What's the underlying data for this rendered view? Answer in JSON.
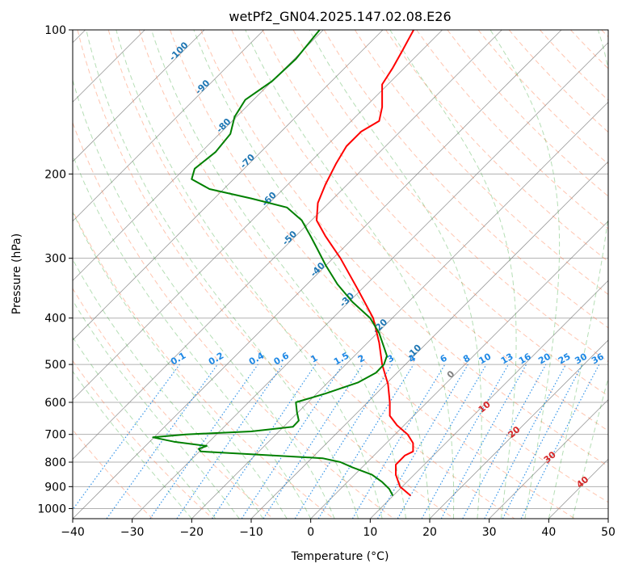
{
  "chart_data": {
    "type": "skew-t log-p",
    "title": "wetPf2_GN04.2025.147.02.08.E26",
    "xlabel": "Temperature (°C)",
    "ylabel": "Pressure (hPa)",
    "xlim": [
      -40,
      50
    ],
    "ylim_hpa": [
      1050,
      100
    ],
    "y_scale": "log",
    "grid": true,
    "x_ticks": [
      -40,
      -30,
      -20,
      -10,
      0,
      10,
      20,
      30,
      40,
      50
    ],
    "y_ticks": [
      100,
      200,
      300,
      400,
      500,
      600,
      700,
      800,
      900,
      1000
    ],
    "series": [
      {
        "color": "#ff0000",
        "points": [
          {
            "p": 940,
            "t": 16.8
          },
          {
            "p": 900,
            "t": 15.0
          },
          {
            "p": 850,
            "t": 14.3
          },
          {
            "p": 810,
            "t": 14.3
          },
          {
            "p": 775,
            "t": 15.8
          },
          {
            "p": 760,
            "t": 17.2
          },
          {
            "p": 730,
            "t": 17.2
          },
          {
            "p": 700,
            "t": 16.3
          },
          {
            "p": 670,
            "t": 14.5
          },
          {
            "p": 640,
            "t": 13.3
          },
          {
            "p": 600,
            "t": 13.3
          },
          {
            "p": 550,
            "t": 13.0
          },
          {
            "p": 500,
            "t": 12.0
          },
          {
            "p": 450,
            "t": 11.5
          },
          {
            "p": 400,
            "t": 10.5
          },
          {
            "p": 350,
            "t": 8.0
          },
          {
            "p": 300,
            "t": 5.0
          },
          {
            "p": 270,
            "t": 2.5
          },
          {
            "p": 250,
            "t": 1.0
          },
          {
            "p": 230,
            "t": 1.2
          },
          {
            "p": 210,
            "t": 2.5
          },
          {
            "p": 190,
            "t": 4.3
          },
          {
            "p": 175,
            "t": 6.0
          },
          {
            "p": 163,
            "t": 8.5
          },
          {
            "p": 155,
            "t": 11.5
          },
          {
            "p": 145,
            "t": 12.0
          },
          {
            "p": 135,
            "t": 12.0
          },
          {
            "p": 130,
            "t": 12.0
          },
          {
            "p": 120,
            "t": 13.8
          },
          {
            "p": 110,
            "t": 15.5
          },
          {
            "p": 100,
            "t": 17.3
          }
        ]
      },
      {
        "color": "#008000",
        "points": [
          {
            "p": 940,
            "t": 13.8
          },
          {
            "p": 910,
            "t": 13.2
          },
          {
            "p": 880,
            "t": 12.0
          },
          {
            "p": 850,
            "t": 10.3
          },
          {
            "p": 820,
            "t": 7.0
          },
          {
            "p": 800,
            "t": 5.0
          },
          {
            "p": 785,
            "t": 2.0
          },
          {
            "p": 770,
            "t": -10.0
          },
          {
            "p": 760,
            "t": -18.5
          },
          {
            "p": 750,
            "t": -18.8
          },
          {
            "p": 740,
            "t": -17.5
          },
          {
            "p": 725,
            "t": -23.0
          },
          {
            "p": 710,
            "t": -26.5
          },
          {
            "p": 700,
            "t": -21.0
          },
          {
            "p": 690,
            "t": -10.0
          },
          {
            "p": 675,
            "t": -3.0
          },
          {
            "p": 655,
            "t": -2.0
          },
          {
            "p": 630,
            "t": -2.3
          },
          {
            "p": 600,
            "t": -2.5
          },
          {
            "p": 575,
            "t": 2.5
          },
          {
            "p": 545,
            "t": 8.0
          },
          {
            "p": 520,
            "t": 11.0
          },
          {
            "p": 500,
            "t": 12.3
          },
          {
            "p": 480,
            "t": 12.8
          },
          {
            "p": 460,
            "t": 12.3
          },
          {
            "p": 430,
            "t": 11.5
          },
          {
            "p": 400,
            "t": 10.0
          },
          {
            "p": 370,
            "t": 7.0
          },
          {
            "p": 340,
            "t": 4.5
          },
          {
            "p": 310,
            "t": 2.5
          },
          {
            "p": 285,
            "t": 1.0
          },
          {
            "p": 270,
            "t": 0.0
          },
          {
            "p": 250,
            "t": -1.5
          },
          {
            "p": 235,
            "t": -4.0
          },
          {
            "p": 225,
            "t": -10.0
          },
          {
            "p": 215,
            "t": -17.0
          },
          {
            "p": 205,
            "t": -20.0
          },
          {
            "p": 195,
            "t": -19.5
          },
          {
            "p": 180,
            "t": -16.0
          },
          {
            "p": 165,
            "t": -13.5
          },
          {
            "p": 152,
            "t": -12.8
          },
          {
            "p": 140,
            "t": -11.0
          },
          {
            "p": 128,
            "t": -6.5
          },
          {
            "p": 115,
            "t": -2.5
          },
          {
            "p": 100,
            "t": 1.5
          }
        ]
      }
    ],
    "isotherm_labels": [
      {
        "text": "-100",
        "p": 112
      },
      {
        "text": "-90",
        "p": 133
      },
      {
        "text": "-80",
        "p": 160
      },
      {
        "text": "-70",
        "p": 190
      },
      {
        "text": "-60",
        "p": 228
      },
      {
        "text": "-50",
        "p": 275
      },
      {
        "text": "-40",
        "p": 320
      },
      {
        "text": "-30",
        "p": 370
      },
      {
        "text": "-20",
        "p": 420
      },
      {
        "text": "-10",
        "p": 475
      },
      {
        "text": "0",
        "p": 530
      }
    ],
    "mixing_ratio_labels": [
      "0.1",
      "0.2",
      "0.4",
      "0.6",
      "1",
      "1.5",
      "2",
      "3",
      "4",
      "6",
      "8",
      "10",
      "13",
      "16",
      "20",
      "25",
      "30",
      "36"
    ],
    "moist_adiabat_labels": [
      "10",
      "20",
      "30",
      "40"
    ],
    "colors": {
      "temperature": "#ff0000",
      "dewpoint": "#008000",
      "isotherm": "#808080",
      "isotherm_label": "#1f77b4",
      "dry_adiabat": "#ff7f50",
      "moist_adiabat": "#2ca02c",
      "mixing_ratio": "#1e88e5",
      "hpa_grid": "#b0b0b0",
      "freezing_label": "#808080",
      "moist_label": "#d62728"
    }
  }
}
